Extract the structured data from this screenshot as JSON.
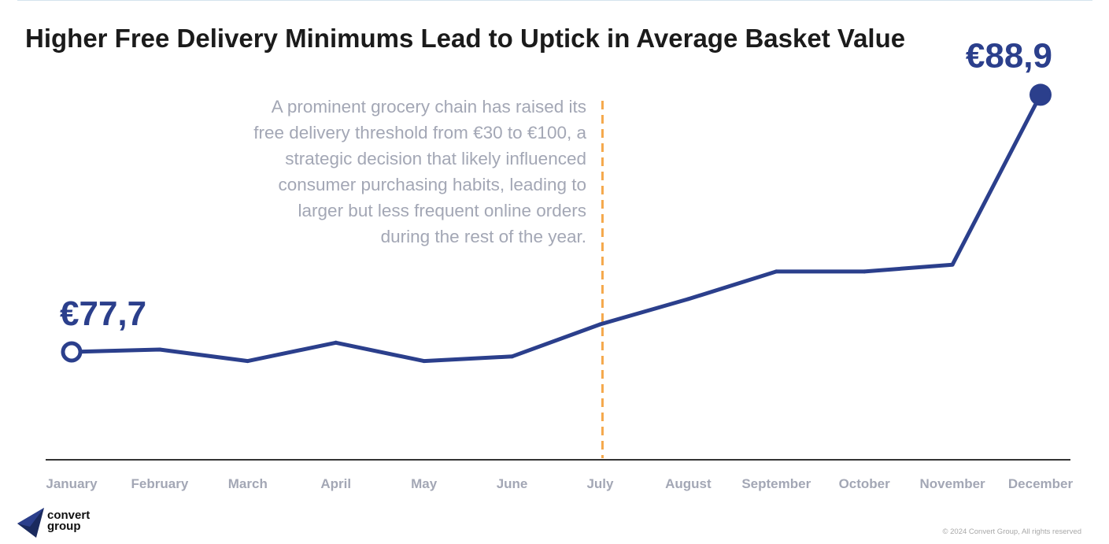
{
  "title": "Higher Free Delivery Minimums Lead to Uptick in Average Basket Value",
  "annotation_lines": [
    "A prominent grocery chain has raised its",
    "free delivery threshold from €30 to €100, a",
    "strategic decision that likely influenced",
    "consumer purchasing habits, leading to",
    "larger but less frequent online orders",
    "during the rest of the year."
  ],
  "footer": {
    "copyright": "© 2024 Convert Group, All rights reserved"
  },
  "logo": {
    "line1": "convert",
    "line2": "group"
  },
  "colors": {
    "line": "#2b3f8c",
    "marker_line": "#f5a94c",
    "axis": "#333333",
    "tick_label": "#a3a7b5",
    "annotation": "#a3a7b5"
  },
  "chart_data": {
    "type": "line",
    "categories": [
      "January",
      "February",
      "March",
      "April",
      "May",
      "June",
      "July",
      "August",
      "September",
      "October",
      "November",
      "December"
    ],
    "series": [
      {
        "values": [
          77.7,
          77.8,
          77.3,
          78.1,
          77.3,
          77.5,
          78.9,
          80.0,
          81.2,
          81.2,
          81.5,
          88.9
        ]
      }
    ],
    "data_labels": [
      {
        "index": 0,
        "text": "€77,7"
      },
      {
        "index": 11,
        "text": "€88,9"
      }
    ],
    "ylim": [
      73.0,
      89.6
    ],
    "reference_line": {
      "x": "July",
      "style": "dashed"
    },
    "grid": false,
    "legend": "none",
    "title": "Higher Free Delivery Minimums Lead to Uptick in Average Basket Value",
    "xlabel": "",
    "ylabel": ""
  }
}
